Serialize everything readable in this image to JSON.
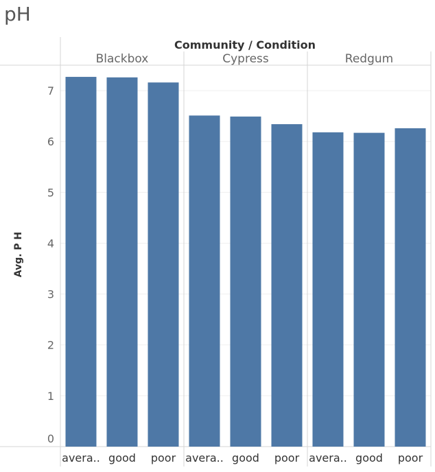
{
  "page": {
    "title": "pH"
  },
  "colors": {
    "bar": "#4e78a6",
    "divider": "#d4d4d4",
    "gridline": "#efefef"
  },
  "chart_data": {
    "type": "bar",
    "header_title": "Community / Condition",
    "ylabel": "Avg. P H",
    "ylim": [
      0,
      7.5
    ],
    "yticks": [
      "0",
      "1",
      "2",
      "3",
      "4",
      "5",
      "6",
      "7"
    ],
    "groups": [
      {
        "name": "Blackbox",
        "categories": [
          "avera..",
          "good",
          "poor"
        ],
        "values": [
          7.27,
          7.26,
          7.16
        ]
      },
      {
        "name": "Cypress",
        "categories": [
          "avera..",
          "good",
          "poor"
        ],
        "values": [
          6.51,
          6.49,
          6.34
        ]
      },
      {
        "name": "Redgum",
        "categories": [
          "avera..",
          "good",
          "poor"
        ],
        "values": [
          6.18,
          6.17,
          6.26
        ]
      }
    ]
  }
}
